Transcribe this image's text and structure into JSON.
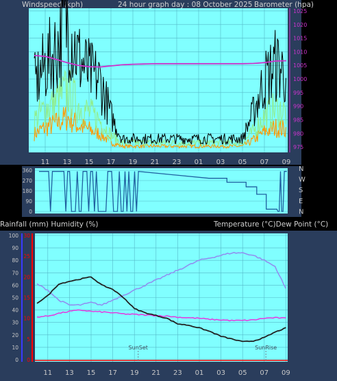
{
  "header": {
    "left_label": "Windspeed (kph)",
    "title": "24 hour graph day : 08 October 2025",
    "right_label": "Barometer (hpa)"
  },
  "mid_header": {
    "left_label": "Rainfall (mm)  Humidity (%)",
    "right_label": "Temperature (°C)Dew Point (°C)"
  },
  "colors": {
    "plot_bg": "#80ffff",
    "panel_bg": "#2a3d5c",
    "wind_gust": "#000000",
    "wind_avg": "#90ee90",
    "wind_min": "#ff9900",
    "barometer": "#cc33cc",
    "direction": "#2060a0",
    "temperature": "#222222",
    "humidity": "#9090f0",
    "dewpoint": "#e040e0",
    "rain_axis": "#ff0000",
    "humidity_axis": "#3a3aff"
  },
  "chart_data": [
    {
      "type": "line",
      "name": "wind-barometer",
      "x_ticks": [
        "11",
        "13",
        "15",
        "17",
        "19",
        "21",
        "23",
        "01",
        "03",
        "05",
        "07",
        "09"
      ],
      "y_right_ticks": [
        "975",
        "980",
        "985",
        "990",
        "995",
        "1000",
        "1005",
        "1010",
        "1015",
        "1020",
        "1025"
      ],
      "y_right_range": [
        973,
        1026
      ],
      "y_left_ticks": [],
      "wind_gust_kph_by_hour": [
        17,
        22,
        26,
        34,
        24,
        20,
        18,
        9,
        3,
        3,
        3,
        3,
        3,
        3,
        3,
        3,
        3,
        3,
        3,
        3,
        10,
        18,
        22,
        20
      ],
      "wind_avg_kph_by_hour": [
        8,
        11,
        13,
        16,
        12,
        10,
        8,
        4,
        2,
        2,
        2,
        2,
        2,
        2,
        2,
        2,
        2,
        2,
        2,
        2,
        5,
        9,
        11,
        10
      ],
      "barometer_hpa_by_hour": [
        1008.6,
        1008.3,
        1007.2,
        1006.0,
        1005.0,
        1004.5,
        1004.4,
        1004.8,
        1005.2,
        1005.4,
        1005.5,
        1005.6,
        1005.6,
        1005.6,
        1005.6,
        1005.6,
        1005.6,
        1005.6,
        1005.6,
        1005.6,
        1005.7,
        1006.0,
        1006.6,
        1006.7
      ]
    },
    {
      "type": "line",
      "name": "wind-direction",
      "y_ticks": [
        "360",
        "270",
        "180",
        "90",
        "0"
      ],
      "compass_labels": [
        "N",
        "W",
        "S",
        "E",
        "N"
      ],
      "ylim": [
        0,
        360
      ],
      "direction_degrees_steps": [
        {
          "from_hour": 16.0,
          "to_hour": 17.7,
          "deg": 290
        },
        {
          "from_hour": 17.7,
          "to_hour": 19.5,
          "deg": 255
        },
        {
          "from_hour": 19.5,
          "to_hour": 20.5,
          "deg": 215
        },
        {
          "from_hour": 20.5,
          "to_hour": 21.4,
          "deg": 150
        },
        {
          "from_hour": 21.4,
          "to_hour": 22.4,
          "deg": 20
        }
      ]
    },
    {
      "type": "line",
      "name": "temperature-humidity",
      "x_ticks": [
        "11",
        "13",
        "15",
        "17",
        "19",
        "21",
        "23",
        "01",
        "03",
        "05",
        "07",
        "09"
      ],
      "humidity_ticks": [
        "100",
        "90",
        "80",
        "70",
        "60",
        "50",
        "40",
        "30",
        "20",
        "10",
        "0"
      ],
      "rain_ticks": [
        "30",
        "25",
        "20",
        "15",
        "10",
        "5",
        "0"
      ],
      "humidity_ylim": [
        0,
        100
      ],
      "temperature_c_by_hour": [
        10.5,
        13.2,
        17.4,
        18.4,
        19.2,
        20.0,
        17.0,
        15.5,
        12.5,
        8.5,
        7.0,
        6.0,
        5.0,
        3.0,
        2.5,
        1.5,
        0.2,
        -1.5,
        -2.5,
        -3.5,
        -3.2,
        -2.0,
        0.0,
        1.5
      ],
      "humidity_pct_by_hour": [
        61,
        56,
        48,
        44,
        44,
        46,
        44,
        48,
        52,
        56,
        60,
        64,
        68,
        72,
        76,
        80,
        82,
        84,
        86,
        86,
        84,
        80,
        75,
        57
      ],
      "dewpoint_c_by_hour": [
        5.5,
        5.8,
        6.8,
        7.5,
        8.0,
        7.5,
        7.3,
        7.0,
        6.6,
        6.4,
        6.2,
        6.0,
        5.8,
        5.4,
        5.2,
        5.0,
        4.6,
        4.4,
        4.2,
        4.2,
        4.4,
        5.0,
        5.2,
        5.0
      ],
      "annotations": [
        "SunSet",
        "SunRise"
      ]
    }
  ]
}
